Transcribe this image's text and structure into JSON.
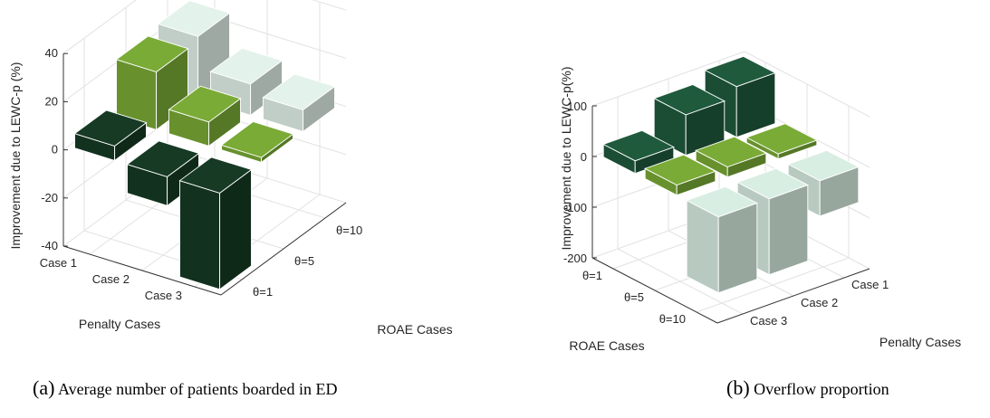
{
  "chart_data": [
    {
      "type": "bar3d",
      "caption_label": "(a)",
      "caption_text": "Average number of patients boarded in ED",
      "zlabel": "Improvement due to LEWC-p (%)",
      "xlabel": "Penalty Cases",
      "ylabel": "ROAE Cases",
      "penalty_cases": [
        "Case 1",
        "Case 2",
        "Case 3"
      ],
      "roae_cases": [
        "θ=1",
        "θ=5",
        "θ=10"
      ],
      "zlim": [
        -40,
        40
      ],
      "zticks": [
        -40,
        -20,
        0,
        20,
        40
      ],
      "grid": true,
      "series": [
        {
          "roae": "θ=1",
          "color": "#163a24",
          "values": [
            6,
            -12,
            -58
          ]
        },
        {
          "roae": "θ=5",
          "color": "#7aab36",
          "values": [
            24,
            10,
            2
          ]
        },
        {
          "roae": "θ=10",
          "color": "#e3f2ea",
          "values": [
            26,
            13,
            9
          ]
        }
      ]
    },
    {
      "type": "bar3d",
      "caption_label": "(b)",
      "caption_text": "Overflow proportion",
      "zlabel": "Improvement due to LEWC-p(%)",
      "xlabel": "Penalty Cases",
      "ylabel": "ROAE Cases",
      "penalty_cases": [
        "Case 1",
        "Case 2",
        "Case 3"
      ],
      "roae_cases": [
        "θ=1",
        "θ=5",
        "θ=10"
      ],
      "zlim": [
        -200,
        100
      ],
      "zticks": [
        -200,
        -100,
        0,
        100
      ],
      "grid": true,
      "series": [
        {
          "roae": "θ=1",
          "color": "#1f5a3d",
          "values": [
            100,
            80,
            25
          ]
        },
        {
          "roae": "θ=5",
          "color": "#7aab36",
          "values": [
            10,
            20,
            20
          ]
        },
        {
          "roae": "θ=10",
          "color": "#d9eee2",
          "values": [
            -70,
            -150,
            -150
          ]
        }
      ]
    }
  ]
}
